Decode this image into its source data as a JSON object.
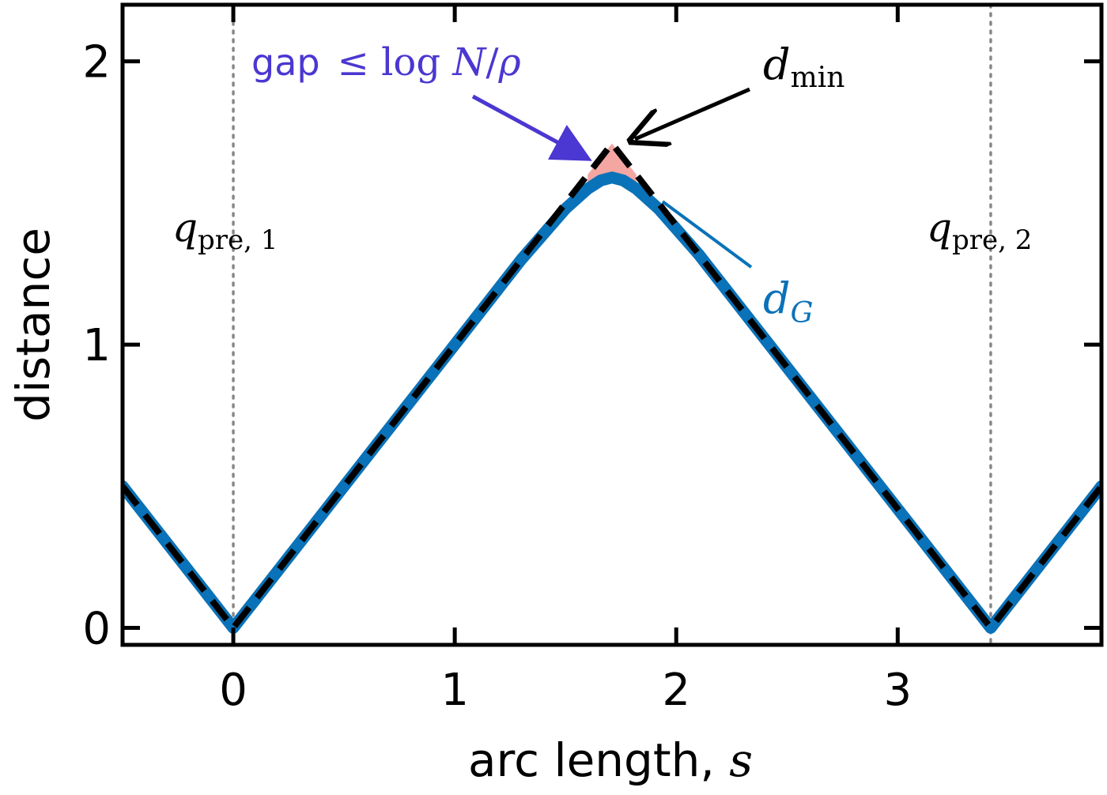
{
  "chart_data": {
    "type": "line",
    "xlabel_text": "arc length, ",
    "xlabel_var": "s",
    "ylabel": "distance",
    "xlim": [
      -0.5,
      3.92
    ],
    "ylim": [
      -0.06,
      2.2
    ],
    "x_ticks": [
      0,
      1,
      2,
      3
    ],
    "y_ticks": [
      0,
      1,
      2
    ],
    "x_tick_labels": [
      "0",
      "1",
      "2",
      "3"
    ],
    "y_tick_labels": [
      "0",
      "1",
      "2"
    ],
    "grid": false,
    "vlines": [
      {
        "x": 0,
        "label_base": "q",
        "label_sub": "pre, 1"
      },
      {
        "x": 3.42,
        "label_base": "q",
        "label_sub": "pre, 2"
      }
    ],
    "series": [
      {
        "name": "d_G",
        "color": "#0a72b8",
        "style": "solid",
        "x": [
          -0.5,
          0,
          0.5,
          1.0,
          1.3,
          1.5,
          1.6,
          1.66,
          1.71,
          1.76,
          1.82,
          1.92,
          2.1,
          2.5,
          3.0,
          3.42,
          3.92
        ],
        "y": [
          0.5,
          0.0,
          0.5,
          1.0,
          1.3,
          1.48,
          1.55,
          1.58,
          1.59,
          1.58,
          1.55,
          1.48,
          1.32,
          0.92,
          0.42,
          0.0,
          0.5
        ]
      },
      {
        "name": "d_min",
        "color": "#000000",
        "style": "dashed",
        "x": [
          -0.5,
          0,
          1.71,
          3.42,
          3.92
        ],
        "y": [
          0.5,
          0.0,
          1.71,
          0.0,
          0.5
        ]
      }
    ],
    "gap_region": {
      "x_range": [
        1.6,
        1.82
      ],
      "color": "#f4a6a3"
    },
    "annotations": [
      {
        "id": "gap",
        "text_word": "gap",
        "text_math_a": "≤ log ",
        "text_math_b": "N",
        "text_math_c": "/",
        "text_math_d": "ρ",
        "color": "#4b37d1"
      },
      {
        "id": "dmin",
        "base": "d",
        "sub": "min",
        "color": "#000000"
      },
      {
        "id": "dG",
        "base": "d",
        "sub": "G",
        "color": "#0a72b8"
      }
    ]
  }
}
